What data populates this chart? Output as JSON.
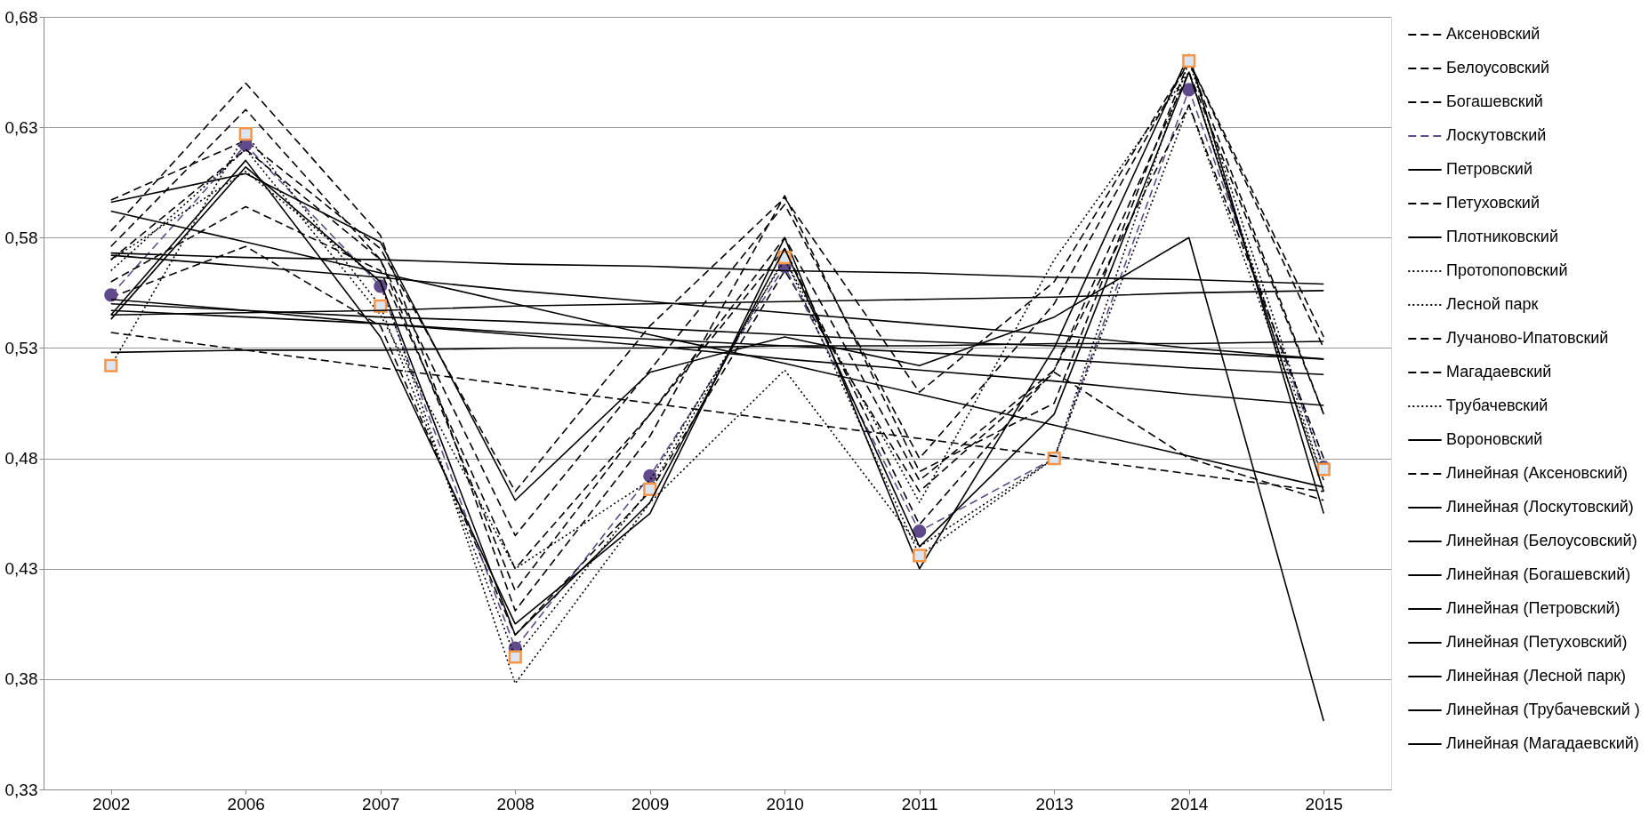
{
  "chart_data": {
    "type": "line",
    "categories": [
      "2002",
      "2006",
      "2007",
      "2008",
      "2009",
      "2010",
      "2011",
      "2013",
      "2014",
      "2015"
    ],
    "ylim": [
      0.33,
      0.68
    ],
    "yticks": [
      {
        "value": 0.33,
        "label": "0,33"
      },
      {
        "value": 0.38,
        "label": "0,38"
      },
      {
        "value": 0.43,
        "label": "0,43"
      },
      {
        "value": 0.48,
        "label": "0,48"
      },
      {
        "value": 0.53,
        "label": "0,53"
      },
      {
        "value": 0.58,
        "label": "0,58"
      },
      {
        "value": 0.63,
        "label": "0,63"
      },
      {
        "value": 0.68,
        "label": "0,68"
      }
    ],
    "grid": "y",
    "legend": "right",
    "marker": "none",
    "series": [
      {
        "name": "Аксеновский",
        "color": "#000000",
        "line_style": "dashed",
        "values": [
          0.553,
          0.576,
          0.54,
          0.4,
          0.465,
          0.565,
          0.465,
          0.519,
          0.48,
          0.461
        ]
      },
      {
        "name": "Белоусовский",
        "color": "#000000",
        "line_style": "dashed",
        "values": [
          0.576,
          0.638,
          0.57,
          0.445,
          0.52,
          0.595,
          0.48,
          0.55,
          0.66,
          0.53
        ]
      },
      {
        "name": "Богашевский",
        "color": "#000000",
        "line_style": "dashed",
        "values": [
          0.597,
          0.624,
          0.575,
          0.465,
          0.54,
          0.598,
          0.51,
          0.56,
          0.66,
          0.535
        ]
      },
      {
        "name": "Лоскутовский",
        "color": "#5f4b8b",
        "line_style": "dashed",
        "marker": "circle",
        "values": [
          0.554,
          0.622,
          0.558,
          0.394,
          0.472,
          0.567,
          0.447,
          0.48,
          0.647,
          0.476
        ]
      },
      {
        "name": "Петровский",
        "color": "#000000",
        "line_style": "solid",
        "values": [
          0.596,
          0.609,
          0.578,
          0.461,
          0.519,
          0.535,
          0.522,
          0.544,
          0.58,
          0.361
        ]
      },
      {
        "name": "Петуховский",
        "color": "#000000",
        "line_style": "dashed",
        "values": [
          0.56,
          0.594,
          0.565,
          0.43,
          0.5,
          0.575,
          0.45,
          0.52,
          0.64,
          0.48
        ]
      },
      {
        "name": "Плотниковский",
        "color": "#000000",
        "line_style": "solid",
        "values": [
          0.545,
          0.615,
          0.535,
          0.405,
          0.455,
          0.58,
          0.43,
          0.53,
          0.663,
          0.455
        ]
      },
      {
        "name": "Протопоповский",
        "color": "#000000",
        "line_style": "dotted",
        "values": [
          0.57,
          0.61,
          0.56,
          0.378,
          0.46,
          0.52,
          0.44,
          0.48,
          0.64,
          0.47
        ]
      },
      {
        "name": "Лесной парк",
        "color": "#000000",
        "line_style": "dotted",
        "values": [
          0.565,
          0.62,
          0.545,
          0.43,
          0.47,
          0.57,
          0.46,
          0.57,
          0.655,
          0.47
        ]
      },
      {
        "name": "Лучаново-Ипатовский",
        "color": "#000000",
        "line_style": "dashed",
        "values": [
          0.583,
          0.65,
          0.581,
          0.411,
          0.49,
          0.599,
          0.474,
          0.505,
          0.66,
          0.5
        ]
      },
      {
        "name": "Магадаевский",
        "color": "#000000",
        "line_style": "dashed",
        "values": [
          0.57,
          0.62,
          0.57,
          0.42,
          0.5,
          0.58,
          0.47,
          0.52,
          0.655,
          0.5
        ]
      },
      {
        "name": "Трубачевский",
        "color": "#f79646",
        "line_style": "dotted",
        "marker": "square",
        "values": [
          0.522,
          0.627,
          0.549,
          0.39,
          0.466,
          0.571,
          0.436,
          0.48,
          0.66,
          0.475
        ]
      },
      {
        "name": "Вороновский",
        "color": "#000000",
        "line_style": "solid",
        "values": [
          0.543,
          0.612,
          0.56,
          0.4,
          0.46,
          0.575,
          0.44,
          0.5,
          0.655,
          0.465
        ]
      },
      {
        "name": "Линейная (Аксеновский)",
        "color": "#000000",
        "line_style": "dashed",
        "values": [
          0.537,
          0.529,
          0.521,
          0.513,
          0.505,
          0.497,
          0.489,
          0.481,
          0.473,
          0.465
        ]
      },
      {
        "name": "Линейная (Лоскутовский)",
        "color": "#000000",
        "line_style": "solid",
        "values": [
          0.552,
          0.547,
          0.541,
          0.536,
          0.531,
          0.525,
          0.52,
          0.515,
          0.509,
          0.504
        ]
      },
      {
        "name": "Линейная (Белоусовский)",
        "color": "#000000",
        "line_style": "solid",
        "values": [
          0.573,
          0.571,
          0.57,
          0.568,
          0.567,
          0.565,
          0.564,
          0.562,
          0.561,
          0.559
        ]
      },
      {
        "name": "Линейная (Богашевский)",
        "color": "#000000",
        "line_style": "solid",
        "values": [
          0.572,
          0.567,
          0.562,
          0.556,
          0.551,
          0.546,
          0.541,
          0.536,
          0.53,
          0.525
        ]
      },
      {
        "name": "Линейная (Петровский)",
        "color": "#000000",
        "line_style": "solid",
        "values": [
          0.592,
          0.578,
          0.564,
          0.55,
          0.536,
          0.523,
          0.509,
          0.495,
          0.481,
          0.467
        ]
      },
      {
        "name": "Линейная (Петуховский)",
        "color": "#000000",
        "line_style": "solid",
        "values": [
          0.545,
          0.546,
          0.547,
          0.549,
          0.55,
          0.551,
          0.552,
          0.553,
          0.555,
          0.556
        ]
      },
      {
        "name": "Линейная (Лесной парк)",
        "color": "#000000",
        "line_style": "solid",
        "values": [
          0.547,
          0.544,
          0.541,
          0.537,
          0.534,
          0.531,
          0.528,
          0.525,
          0.521,
          0.518
        ]
      },
      {
        "name": "Линейная (Трубачевский )",
        "color": "#000000",
        "line_style": "solid",
        "values": [
          0.528,
          0.529,
          0.529,
          0.53,
          0.53,
          0.531,
          0.531,
          0.532,
          0.532,
          0.533
        ]
      },
      {
        "name": "Линейная (Магадаевский)",
        "color": "#000000",
        "line_style": "solid",
        "values": [
          0.55,
          0.547,
          0.544,
          0.542,
          0.539,
          0.536,
          0.533,
          0.531,
          0.528,
          0.525
        ]
      }
    ]
  }
}
